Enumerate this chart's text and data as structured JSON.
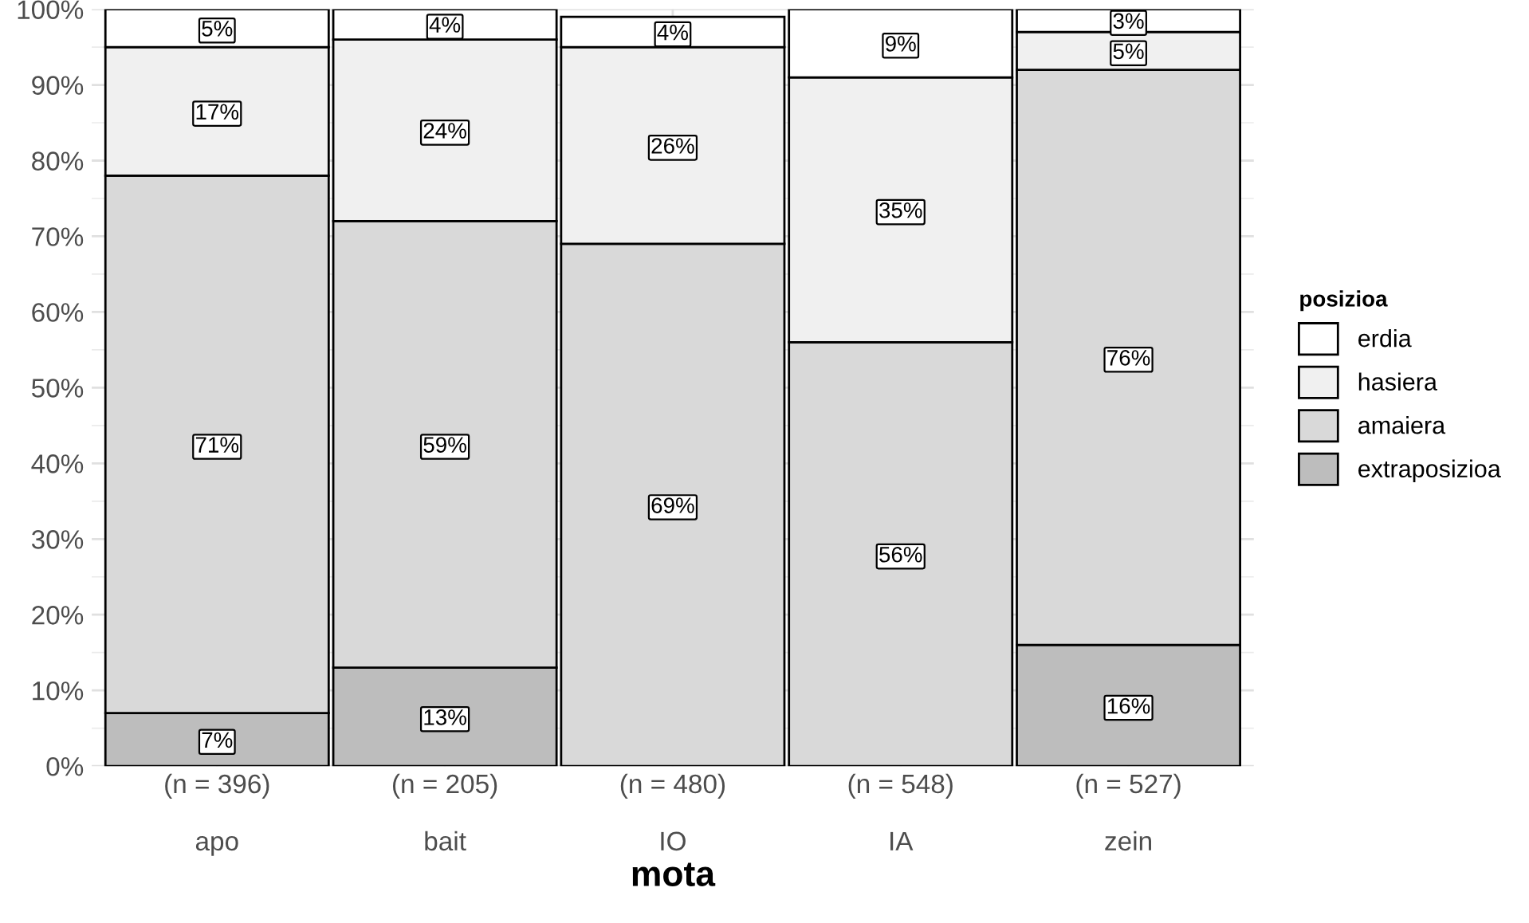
{
  "chart_data": {
    "type": "bar",
    "stacked": true,
    "xlabel": "mota",
    "ylim": [
      0,
      100
    ],
    "yticks": [
      {
        "value": 0,
        "label": "0%"
      },
      {
        "value": 10,
        "label": "10%"
      },
      {
        "value": 20,
        "label": "20%"
      },
      {
        "value": 30,
        "label": "30%"
      },
      {
        "value": 40,
        "label": "40%"
      },
      {
        "value": 50,
        "label": "50%"
      },
      {
        "value": 60,
        "label": "60%"
      },
      {
        "value": 70,
        "label": "70%"
      },
      {
        "value": 80,
        "label": "80%"
      },
      {
        "value": 90,
        "label": "90%"
      },
      {
        "value": 100,
        "label": "100%"
      }
    ],
    "categories": [
      "(n = 396)\n\napo",
      "(n = 205)\n\nbait",
      "(n = 480)\n\nIO",
      "(n = 548)\n\nIA",
      "(n = 527)\n\nzein"
    ],
    "legend_title": "posizioa",
    "legend": "right",
    "grid": true,
    "series": [
      {
        "name": "extraposizioa",
        "color": "#bdbdbd",
        "values": [
          7,
          13,
          null,
          null,
          16
        ],
        "value_labels": [
          "7%",
          "13%",
          null,
          null,
          "16%"
        ]
      },
      {
        "name": "amaiera",
        "color": "#d9d9d9",
        "values": [
          71,
          59,
          69,
          56,
          76
        ],
        "value_labels": [
          "71%",
          "59%",
          "69%",
          "56%",
          "76%"
        ]
      },
      {
        "name": "hasiera",
        "color": "#f0f0f0",
        "values": [
          17,
          24,
          26,
          35,
          5
        ],
        "value_labels": [
          "17%",
          "24%",
          "26%",
          "35%",
          "5%"
        ]
      },
      {
        "name": "erdia",
        "color": "#ffffff",
        "values": [
          5,
          4,
          4,
          9,
          3
        ],
        "value_labels": [
          "5%",
          "4%",
          "4%",
          "9%",
          "3%"
        ]
      }
    ]
  }
}
